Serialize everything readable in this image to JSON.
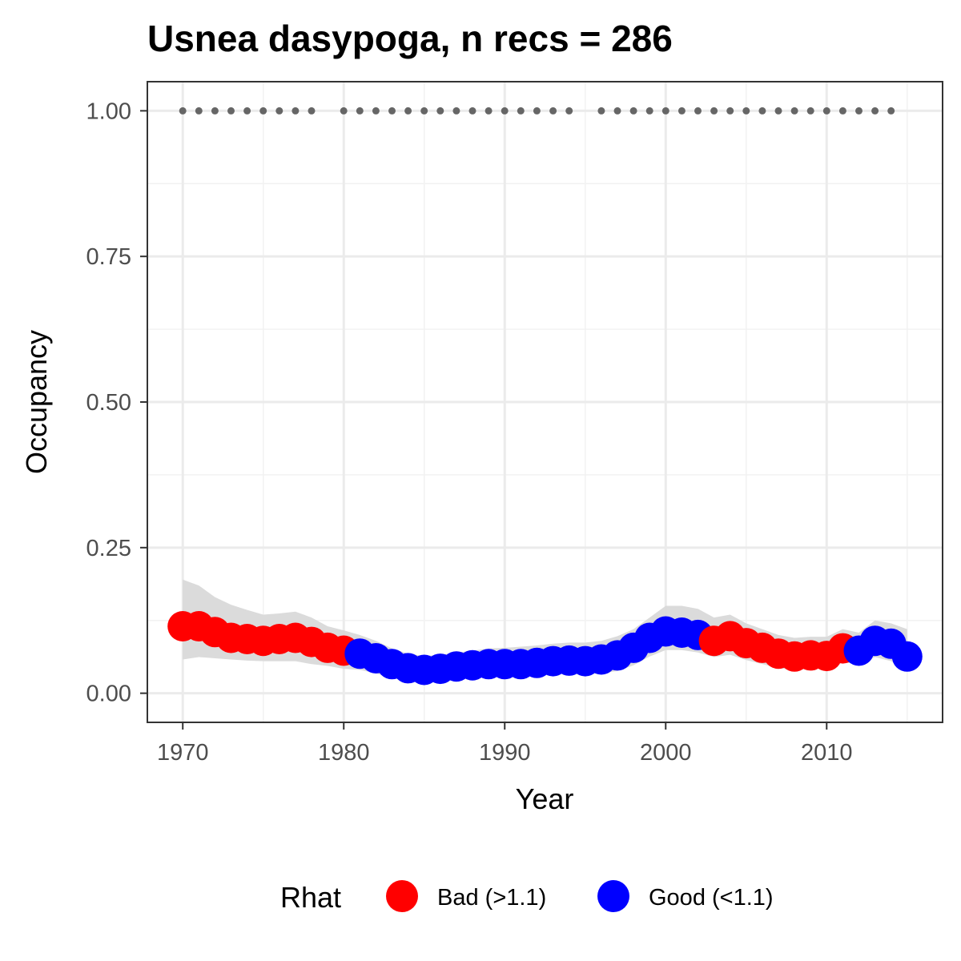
{
  "chart_data": {
    "type": "scatter",
    "title": "Usnea dasypoga, n recs = 286",
    "xlabel": "Year",
    "ylabel": "Occupancy",
    "xlim": [
      1967.8,
      2017.2
    ],
    "ylim": [
      -0.05,
      1.05
    ],
    "x_ticks": [
      1970,
      1980,
      1990,
      2000,
      2010
    ],
    "x_tick_labels": [
      "1970",
      "1980",
      "1990",
      "2000",
      "2010"
    ],
    "y_ticks": [
      0,
      0.25,
      0.5,
      0.75,
      1.0
    ],
    "y_tick_labels": [
      "0.00",
      "0.25",
      "0.50",
      "0.75",
      "1.00"
    ],
    "grid": true,
    "legend": {
      "title": "Rhat",
      "position": "bottom",
      "entries": [
        {
          "key": "bad",
          "label": "Bad (>1.1)",
          "color": "#ff0000"
        },
        {
          "key": "good",
          "label": "Good (<1.1)",
          "color": "#0000ff"
        }
      ]
    },
    "series": [
      {
        "x": [
          1970,
          1971,
          1972,
          1973,
          1974,
          1975,
          1976,
          1977,
          1978,
          1979,
          1980,
          1981,
          1982,
          1983,
          1984,
          1985,
          1986,
          1987,
          1988,
          1989,
          1990,
          1991,
          1992,
          1993,
          1994,
          1995,
          1996,
          1997,
          1998,
          1999,
          2000,
          2001,
          2002,
          2003,
          2004,
          2005,
          2006,
          2007,
          2008,
          2009,
          2010,
          2011,
          2012,
          2013,
          2014,
          2015
        ],
        "y": [
          0.115,
          0.115,
          0.105,
          0.095,
          0.093,
          0.09,
          0.093,
          0.095,
          0.088,
          0.078,
          0.073,
          0.068,
          0.06,
          0.05,
          0.043,
          0.04,
          0.042,
          0.046,
          0.048,
          0.05,
          0.05,
          0.05,
          0.052,
          0.055,
          0.056,
          0.055,
          0.058,
          0.065,
          0.078,
          0.095,
          0.106,
          0.104,
          0.1,
          0.09,
          0.098,
          0.086,
          0.078,
          0.068,
          0.063,
          0.065,
          0.064,
          0.077,
          0.073,
          0.09,
          0.085,
          0.063
        ],
        "lower": [
          0.058,
          0.062,
          0.06,
          0.058,
          0.056,
          0.055,
          0.055,
          0.055,
          0.05,
          0.047,
          0.042,
          0.04,
          0.034,
          0.026,
          0.021,
          0.02,
          0.022,
          0.025,
          0.028,
          0.03,
          0.03,
          0.03,
          0.031,
          0.033,
          0.034,
          0.033,
          0.034,
          0.038,
          0.048,
          0.063,
          0.074,
          0.074,
          0.07,
          0.062,
          0.066,
          0.057,
          0.05,
          0.043,
          0.04,
          0.042,
          0.042,
          0.053,
          0.05,
          0.062,
          0.055,
          0.04
        ],
        "upper": [
          0.195,
          0.185,
          0.165,
          0.152,
          0.143,
          0.135,
          0.137,
          0.14,
          0.13,
          0.115,
          0.108,
          0.1,
          0.09,
          0.077,
          0.068,
          0.064,
          0.066,
          0.07,
          0.073,
          0.077,
          0.078,
          0.08,
          0.082,
          0.085,
          0.087,
          0.087,
          0.09,
          0.098,
          0.11,
          0.13,
          0.15,
          0.15,
          0.145,
          0.13,
          0.135,
          0.12,
          0.11,
          0.1,
          0.095,
          0.097,
          0.097,
          0.11,
          0.104,
          0.125,
          0.12,
          0.11
        ],
        "rhat": [
          "bad",
          "bad",
          "bad",
          "bad",
          "bad",
          "bad",
          "bad",
          "bad",
          "bad",
          "bad",
          "bad",
          "good",
          "good",
          "good",
          "good",
          "good",
          "good",
          "good",
          "good",
          "good",
          "good",
          "good",
          "good",
          "good",
          "good",
          "good",
          "good",
          "good",
          "good",
          "good",
          "good",
          "good",
          "good",
          "bad",
          "bad",
          "bad",
          "bad",
          "bad",
          "bad",
          "bad",
          "bad",
          "bad",
          "good",
          "good",
          "good",
          "good"
        ]
      }
    ],
    "detection_points": {
      "y": 1.0,
      "x": [
        1970,
        1971,
        1972,
        1973,
        1974,
        1975,
        1976,
        1977,
        1978,
        1980,
        1981,
        1982,
        1983,
        1984,
        1985,
        1986,
        1987,
        1988,
        1989,
        1990,
        1991,
        1992,
        1993,
        1994,
        1996,
        1997,
        1998,
        1999,
        2000,
        2001,
        2002,
        2003,
        2004,
        2005,
        2006,
        2007,
        2008,
        2009,
        2010,
        2011,
        2012,
        2013,
        2014
      ],
      "color": "#666666"
    },
    "ribbon_color": "#d9d9d9"
  }
}
